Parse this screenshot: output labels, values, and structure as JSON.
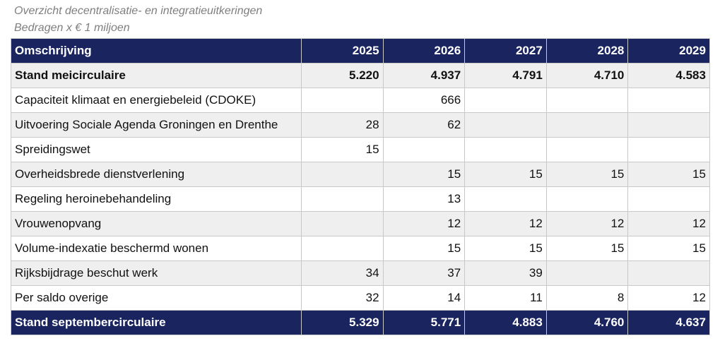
{
  "caption": {
    "title": "Overzicht decentralisatie- en integratieuitkeringen",
    "subtitle": "Bedragen x € 1 miljoen"
  },
  "table": {
    "headers": [
      "Omschrijving",
      "2025",
      "2026",
      "2027",
      "2028",
      "2029"
    ],
    "rows": [
      {
        "label": "Stand meicirculaire",
        "values": [
          "5.220",
          "4.937",
          "4.791",
          "4.710",
          "4.583"
        ]
      },
      {
        "label": "Capaciteit klimaat en energiebeleid (CDOKE)",
        "values": [
          "",
          "666",
          "",
          "",
          ""
        ]
      },
      {
        "label": "Uitvoering Sociale Agenda Groningen en Drenthe",
        "values": [
          "28",
          "62",
          "",
          "",
          ""
        ]
      },
      {
        "label": "Spreidingswet",
        "values": [
          "15",
          "",
          "",
          "",
          ""
        ]
      },
      {
        "label": "Overheidsbrede dienstverlening",
        "values": [
          "",
          "15",
          "15",
          "15",
          "15"
        ]
      },
      {
        "label": "Regeling heroinebehandeling",
        "values": [
          "",
          "13",
          "",
          "",
          ""
        ]
      },
      {
        "label": "Vrouwenopvang",
        "values": [
          "",
          "12",
          "12",
          "12",
          "12"
        ]
      },
      {
        "label": "Volume-indexatie beschermd wonen",
        "values": [
          "",
          "15",
          "15",
          "15",
          "15"
        ]
      },
      {
        "label": "Rijksbijdrage beschut werk",
        "values": [
          "34",
          "37",
          "39",
          "",
          ""
        ]
      },
      {
        "label": "Per saldo overige",
        "values": [
          "32",
          "14",
          "11",
          "8",
          "12"
        ]
      }
    ],
    "total": {
      "label": "Stand septembercirculaire",
      "values": [
        "5.329",
        "5.771",
        "4.883",
        "4.760",
        "4.637"
      ]
    }
  }
}
